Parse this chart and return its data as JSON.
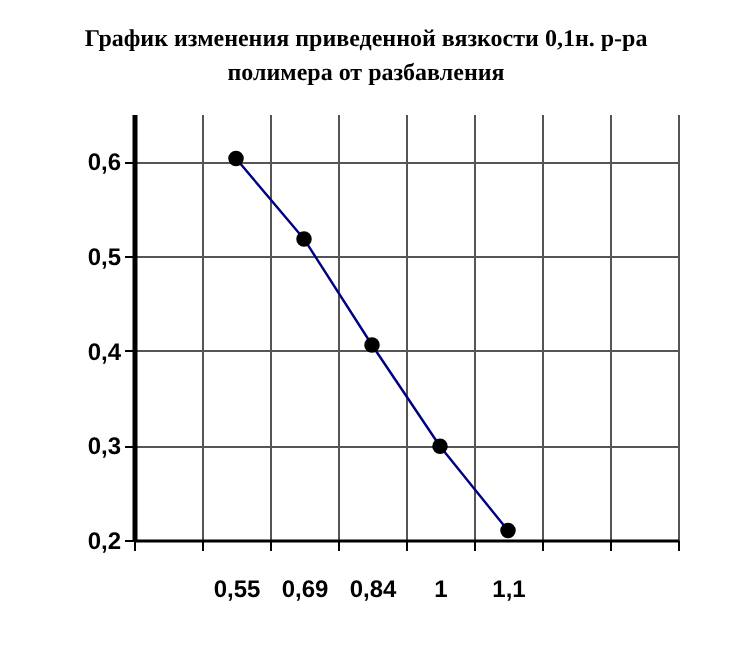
{
  "chart_data": {
    "type": "line",
    "title": "График изменения приведенной вязкости  0,1н. р-ра полимера от разбавления",
    "categories": [
      null,
      "0,55",
      "0,69",
      "0,84",
      "1",
      "1,1",
      null,
      null
    ],
    "series": [
      {
        "color": "#000080",
        "values": [
          null,
          0.603,
          0.518,
          0.406,
          0.299,
          0.21,
          null,
          null
        ]
      }
    ],
    "ylim": [
      0.2,
      0.65
    ],
    "yticks": [
      {
        "value": 0.2,
        "label": "0,2"
      },
      {
        "value": 0.3,
        "label": "0,3"
      },
      {
        "value": 0.4,
        "label": "0,4"
      },
      {
        "value": 0.5,
        "label": "0,5"
      },
      {
        "value": 0.6,
        "label": "0,6"
      }
    ],
    "grid": true,
    "marker": "circle",
    "line_style": "solid"
  }
}
